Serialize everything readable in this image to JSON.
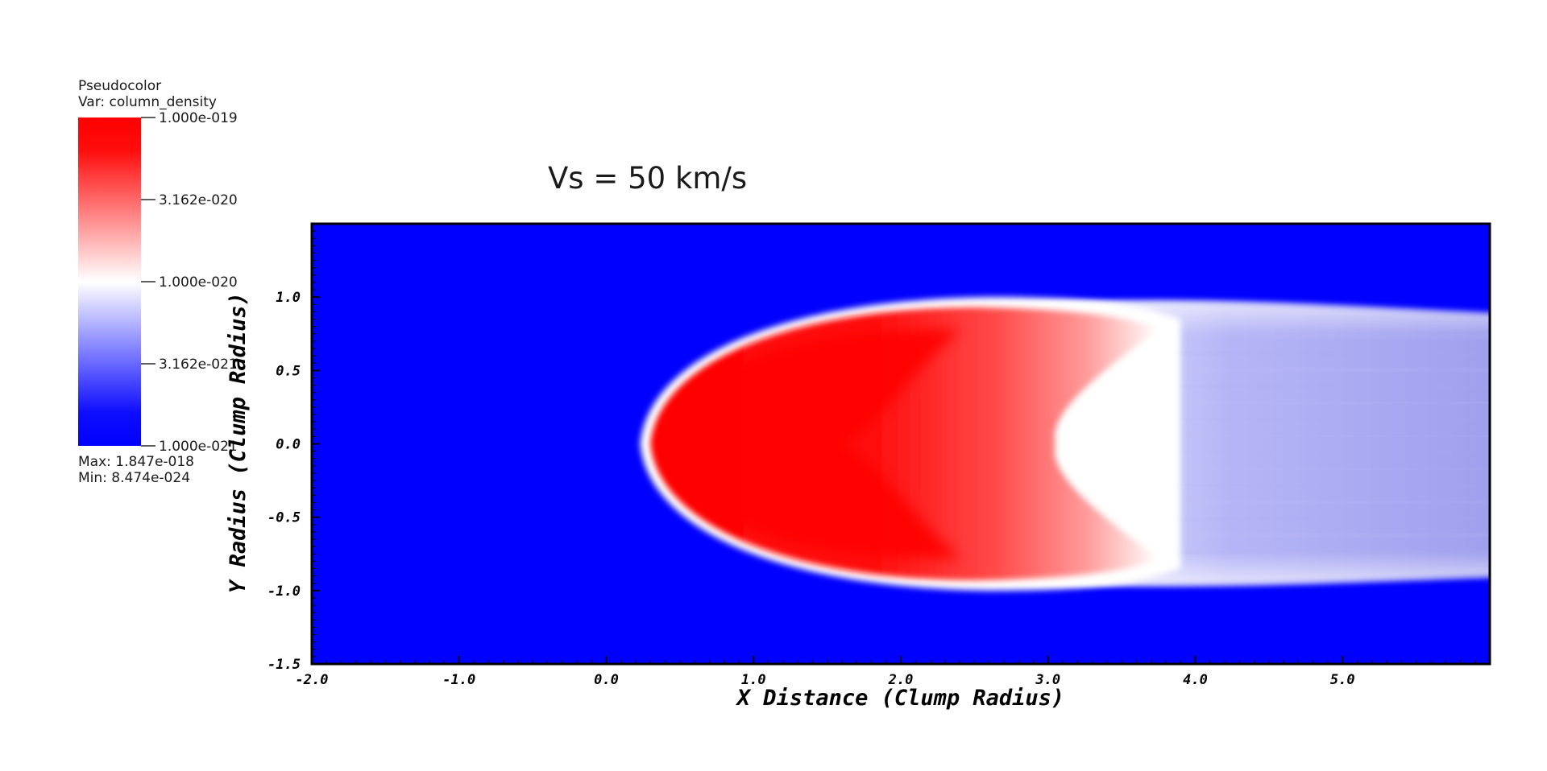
{
  "title": "Vs = 50 km/s",
  "legend": {
    "plot_type": "Pseudocolor",
    "var_label": "Var: column_density",
    "ticks": [
      "1.000e-019",
      "3.162e-020",
      "1.000e-020",
      "3.162e-021",
      "1.000e-021"
    ],
    "max_label": "Max:  1.847e-018",
    "min_label": "Min:  8.474e-024",
    "colors": {
      "high": "#ff0000",
      "mid": "#ffffff",
      "low": "#0000ff"
    }
  },
  "colors": {
    "background": "#0000ff",
    "red": "#ff0000",
    "white": "#ffffff",
    "frame": "#000000"
  },
  "chart_data": {
    "type": "heatmap",
    "title": "Vs = 50 km/s",
    "xlabel": "X Distance (Clump Radius)",
    "ylabel": "Y Radius (Clump Radius)",
    "xlim": [
      -2.0,
      6.0
    ],
    "ylim": [
      -1.5,
      1.5
    ],
    "x_ticks": [
      "-2.0",
      "-1.0",
      "0.0",
      "1.0",
      "2.0",
      "3.0",
      "4.0",
      "5.0"
    ],
    "x_tick_values": [
      -2,
      -1,
      0,
      1,
      2,
      3,
      4,
      5
    ],
    "y_ticks": [
      "1.0",
      "0.5",
      "0.0",
      "-0.5",
      "-1.0",
      "-1.5"
    ],
    "y_tick_values": [
      1.0,
      0.5,
      0.0,
      -0.5,
      -1.0,
      -1.5
    ],
    "color_scale": "log",
    "colorbar_range": [
      1e-21,
      1e-19
    ],
    "data_max": 1.847e-18,
    "data_min": 8.474e-24,
    "variable": "column_density",
    "features": {
      "bow_shock_apex_x": 0.3,
      "dense_core_x_range": [
        0.35,
        3.0
      ],
      "dense_core_half_width": 0.95,
      "tail_x_range": [
        3.0,
        6.0
      ],
      "tail_half_width": 0.95
    }
  }
}
